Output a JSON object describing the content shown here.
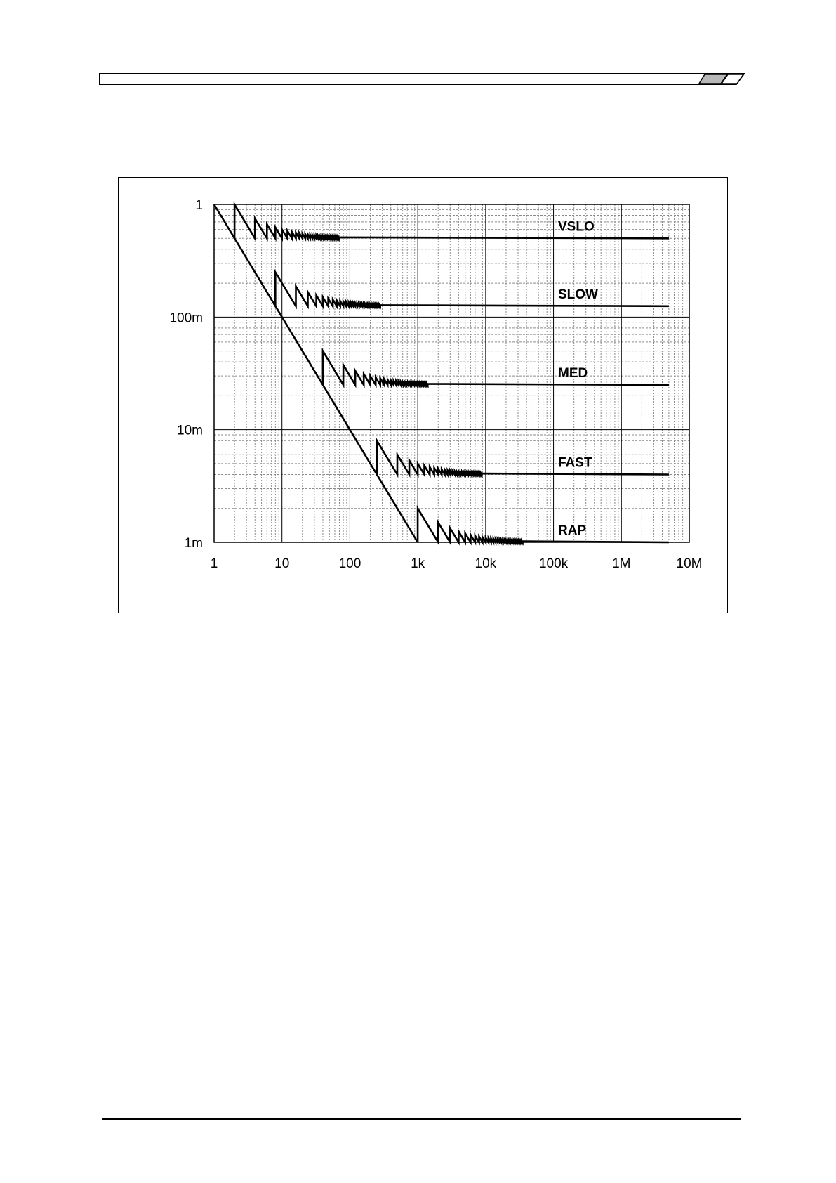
{
  "chart_data": {
    "type": "line",
    "title": "",
    "xlabel": "",
    "ylabel": "",
    "x_scale": "log",
    "y_scale": "log",
    "xlim": [
      1,
      10000000
    ],
    "ylim": [
      0.001,
      1
    ],
    "grid": true,
    "x_tick_values": [
      1,
      10,
      100,
      1000,
      10000,
      100000,
      1000000,
      10000000
    ],
    "x_tick_labels": [
      "1",
      "10",
      "100",
      "1k",
      "10k",
      "100k",
      "1M",
      "10M"
    ],
    "y_tick_values": [
      0.001,
      0.01,
      0.1,
      1
    ],
    "y_tick_labels": [
      "1m",
      "10m",
      "100m",
      "1"
    ],
    "series": [
      {
        "name": "VSLO",
        "step_count": 2,
        "settle_value": 0.5,
        "x_end": 5000000
      },
      {
        "name": "SLOW",
        "step_count": 8,
        "settle_value": 0.125,
        "x_end": 5000000
      },
      {
        "name": "MED",
        "step_count": 40,
        "settle_value": 0.025,
        "x_end": 5000000
      },
      {
        "name": "FAST",
        "step_count": 250,
        "settle_value": 0.004,
        "x_end": 5000000
      },
      {
        "name": "RAP",
        "step_count": 1000,
        "settle_value": 0.001,
        "x_end": 5000000
      }
    ]
  },
  "colors": {
    "line": "#000000",
    "grid_major": "#000000",
    "grid_minor": "#8a8a8a",
    "header_accent": "#b8b8b8"
  }
}
